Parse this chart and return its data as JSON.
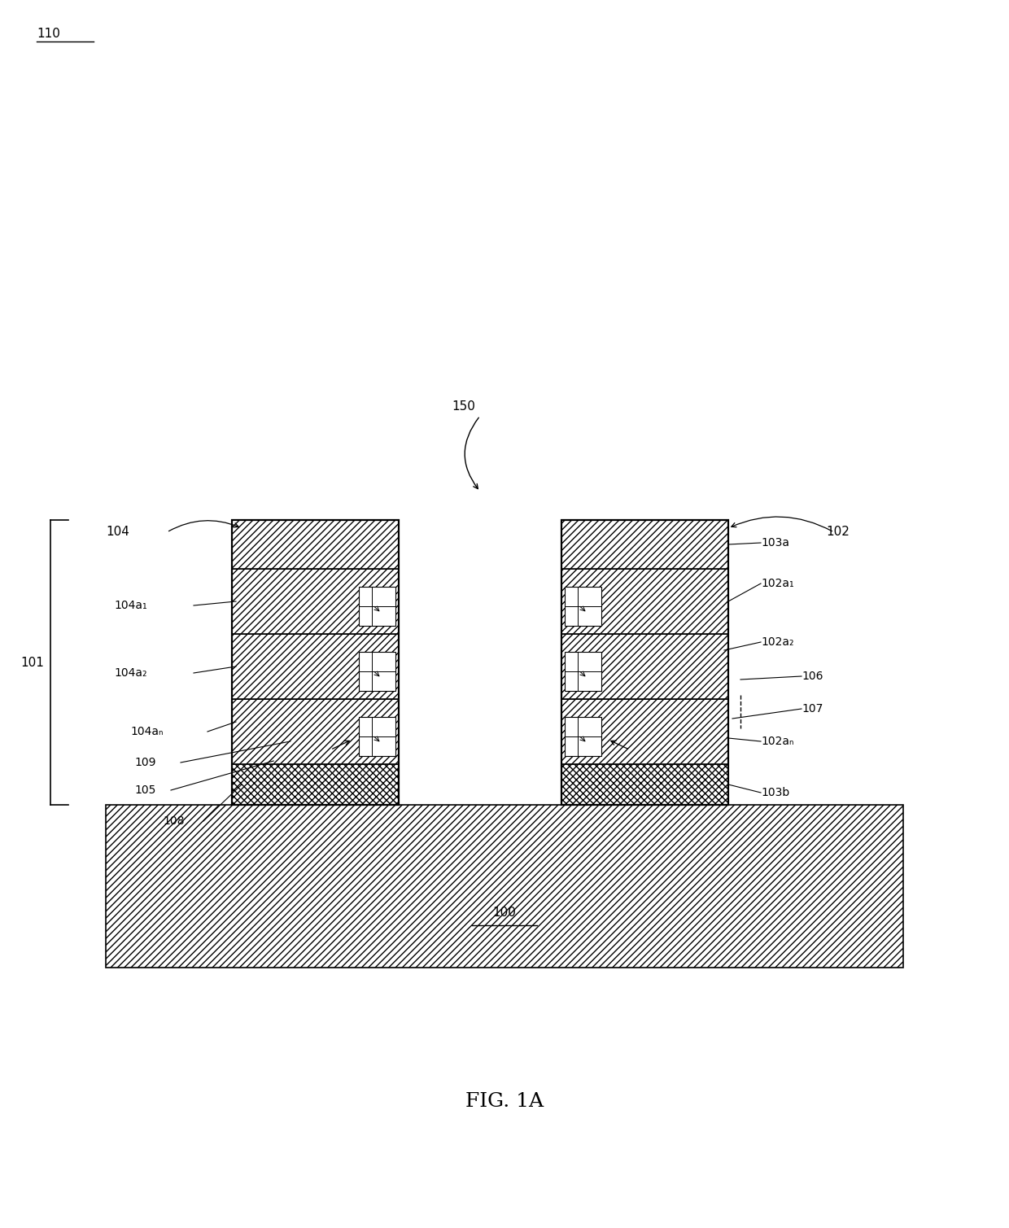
{
  "fig_label": "FIG. 1A",
  "bg_color": "#ffffff",
  "label_110": "110",
  "label_150": "150",
  "label_104": "104",
  "label_102": "102",
  "label_101": "101",
  "label_100": "100",
  "label_104a1": "104a₁",
  "label_104a2": "104a₂",
  "label_104an": "104aₙ",
  "label_109": "109",
  "label_105": "105",
  "label_108": "108",
  "label_103a": "103a",
  "label_102a1": "102a₁",
  "label_102a2": "102a₂",
  "label_102an": "102aₙ",
  "label_103b": "103b",
  "label_106": "106",
  "label_107": "107",
  "line_color": "#000000",
  "fill_color": "#ffffff"
}
